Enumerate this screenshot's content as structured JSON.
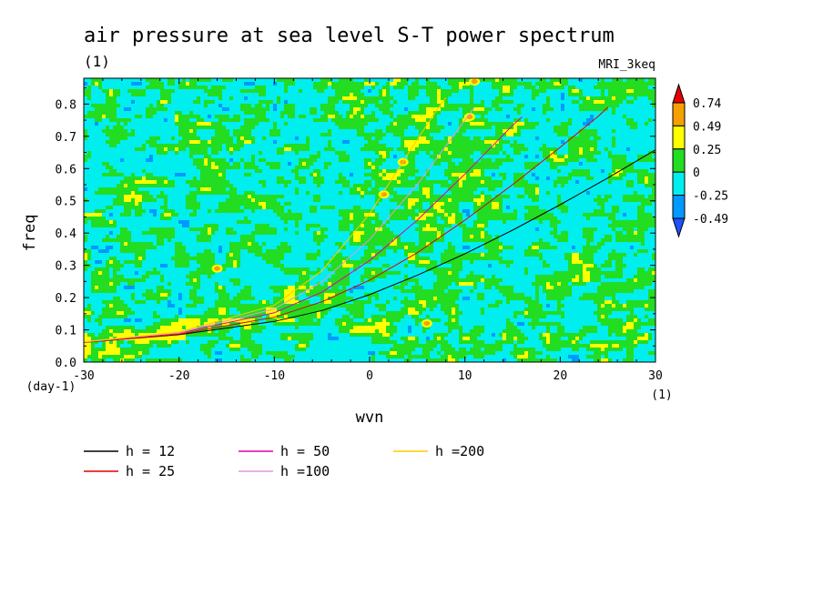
{
  "chart_data": {
    "type": "heatmap",
    "title": "air pressure at sea level S-T power spectrum",
    "subtitle": "(1)",
    "model_label": "MRI_3keq",
    "xlabel": "wvn",
    "ylabel": "freq",
    "x_unit": "(1)",
    "y_unit": "(day-1)",
    "xlim": [
      -30,
      30
    ],
    "ylim": [
      0,
      0.88
    ],
    "x_ticks": [
      -30,
      -20,
      -10,
      0,
      10,
      20,
      30
    ],
    "x_tick_labels": [
      "-30",
      "-20",
      "-10",
      "0",
      "10",
      "20",
      "30"
    ],
    "y_ticks": [
      0.0,
      0.1,
      0.2,
      0.3,
      0.4,
      0.5,
      0.6,
      0.7,
      0.8
    ],
    "y_tick_labels": [
      "0.0",
      "0.1",
      "0.2",
      "0.3",
      "0.4",
      "0.5",
      "0.6",
      "0.7",
      "0.8"
    ],
    "colorbar": {
      "levels": [
        "0.74",
        "0.49",
        "0.25",
        "0",
        "-0.25",
        "-0.49"
      ],
      "level_values": [
        0.74,
        0.49,
        0.25,
        0,
        -0.25,
        -0.49
      ],
      "colors": [
        "#e60000",
        "#f5a000",
        "#ffff00",
        "#22dd22",
        "#00eeee",
        "#0099ff",
        "#1e50ff"
      ]
    },
    "field": {
      "background_range": [
        -0.25,
        0
      ],
      "dominant_levels": [
        "-0.25 to 0",
        "0 to 0.25"
      ],
      "enhanced_region": "positive wvn, 0.3–0.88 freq along dispersion curves",
      "isolated_maxima": [
        {
          "wvn": 6,
          "freq": 0.12,
          "level": "0.49"
        },
        {
          "wvn": 1.5,
          "freq": 0.52,
          "level": "0.49"
        },
        {
          "wvn": 3.5,
          "freq": 0.62,
          "level": "0.49"
        },
        {
          "wvn": 10.5,
          "freq": 0.76,
          "level": "0.49"
        },
        {
          "wvn": 11,
          "freq": 0.87,
          "level": "0.49"
        },
        {
          "wvn": -16,
          "freq": 0.29,
          "level": "0.49"
        }
      ]
    },
    "series": [
      {
        "name": "h = 12",
        "color": "#000000",
        "x": [
          -30,
          -20,
          -10,
          -5,
          0,
          5,
          10,
          15,
          20,
          25,
          30
        ],
        "y": [
          0.061,
          0.085,
          0.126,
          0.16,
          0.209,
          0.269,
          0.336,
          0.409,
          0.488,
          0.571,
          0.658
        ]
      },
      {
        "name": "h = 25",
        "color": "#dd0000",
        "x": [
          -30,
          -20,
          -10,
          -5,
          0,
          5,
          10,
          15,
          20,
          24,
          25
        ],
        "y": [
          0.061,
          0.087,
          0.139,
          0.187,
          0.254,
          0.339,
          0.44,
          0.55,
          0.666,
          0.762,
          0.79
        ]
      },
      {
        "name": "h = 50",
        "color": "#dd00aa",
        "x": [
          -30,
          -20,
          -10,
          -5,
          0,
          5,
          10,
          15,
          16
        ],
        "y": [
          0.062,
          0.09,
          0.153,
          0.217,
          0.315,
          0.44,
          0.583,
          0.734,
          0.76
        ]
      },
      {
        "name": "h =100",
        "color": "#dd99dd",
        "x": [
          -30,
          -20,
          -10,
          -5,
          0,
          5,
          10,
          11
        ],
        "y": [
          0.062,
          0.091,
          0.165,
          0.249,
          0.38,
          0.55,
          0.75,
          0.79
        ]
      },
      {
        "name": "h =200",
        "color": "#ffcc00",
        "x": [
          -30,
          -20,
          -10,
          -5,
          0,
          5,
          7,
          8
        ],
        "y": [
          0.063,
          0.093,
          0.176,
          0.283,
          0.46,
          0.69,
          0.78,
          0.82
        ]
      }
    ]
  }
}
